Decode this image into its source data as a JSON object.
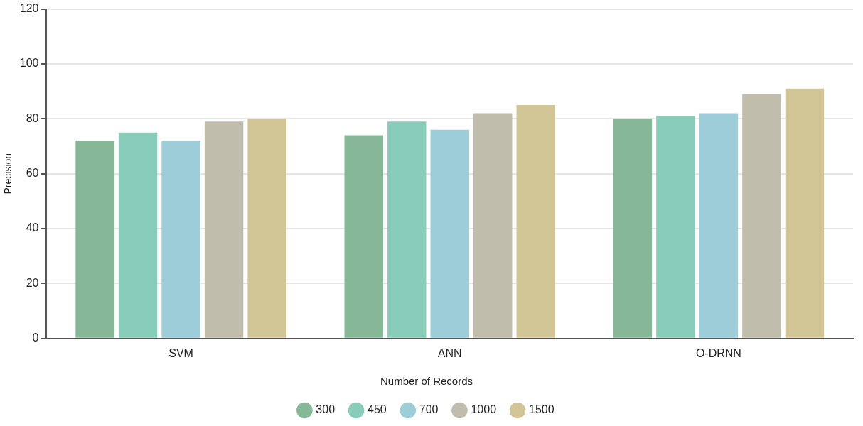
{
  "chart_data": {
    "type": "bar",
    "ylabel": "Precision",
    "legend_title": "Number of Records",
    "categories": [
      "SVM",
      "ANN",
      "O-DRNN"
    ],
    "series": [
      {
        "name": "300",
        "color": "#86b797",
        "values": [
          72,
          74,
          80
        ]
      },
      {
        "name": "450",
        "color": "#87cdb9",
        "values": [
          75,
          79,
          81
        ]
      },
      {
        "name": "700",
        "color": "#9dcdd8",
        "values": [
          72,
          76,
          82
        ]
      },
      {
        "name": "1000",
        "color": "#c0bdad",
        "values": [
          79,
          82,
          89
        ]
      },
      {
        "name": "1500",
        "color": "#d1c596",
        "values": [
          80,
          85,
          91
        ]
      }
    ],
    "ylim": [
      0,
      120
    ],
    "yticks": [
      0,
      20,
      40,
      60,
      80,
      100,
      120
    ],
    "grid": "y",
    "legend": "bottom"
  }
}
